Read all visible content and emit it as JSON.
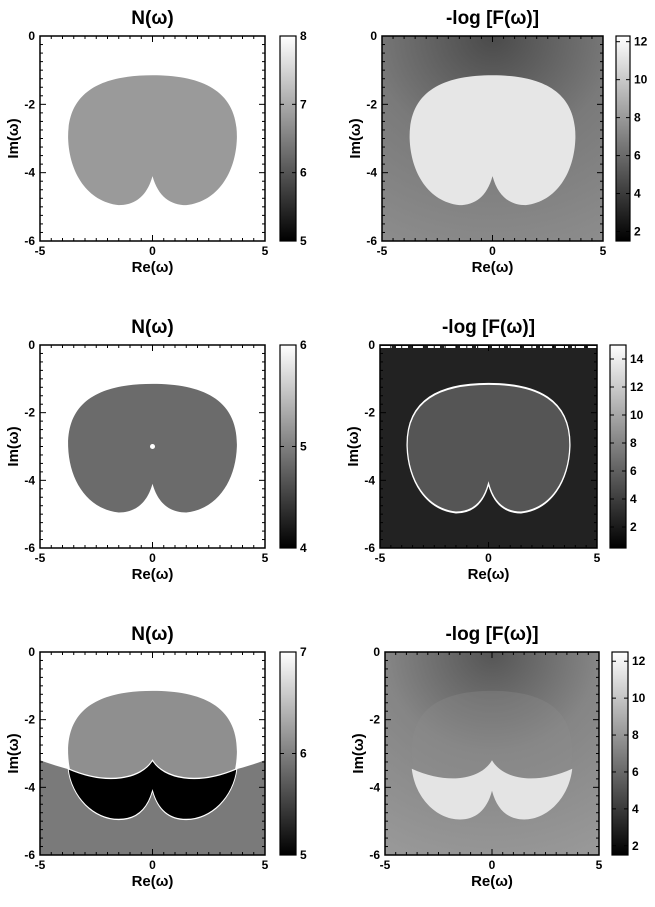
{
  "chart_data": [
    {
      "type": "heatmap",
      "title": "N(ω)",
      "xlabel": "Re(ω)",
      "ylabel": "Im(ω)",
      "xlim": [
        -5,
        5
      ],
      "ylim": [
        -6,
        0
      ],
      "xticks": [
        "-5",
        "0",
        "5"
      ],
      "yticks": [
        "0",
        "-2",
        "-4",
        "-6"
      ],
      "colorbar": {
        "range": [
          5,
          8
        ],
        "ticks": [
          "8",
          "7",
          "6",
          "5"
        ]
      },
      "region_values": {
        "inside_curve": 7,
        "outside_curve": 8
      }
    },
    {
      "type": "heatmap",
      "title": "-log [F(ω)]",
      "xlabel": "Re(ω)",
      "ylabel": "Im(ω)",
      "xlim": [
        -5,
        5
      ],
      "ylim": [
        -6,
        0
      ],
      "xticks": [
        "-5",
        "0",
        "5"
      ],
      "yticks": [
        "0",
        "-2",
        "-4",
        "-6"
      ],
      "colorbar": {
        "range": [
          1.5,
          12.3
        ],
        "ticks": [
          "12",
          "10",
          "8",
          "6",
          "4",
          "2"
        ]
      },
      "region_values": {
        "inside_curve": 11.5,
        "outside_curve": 6.5
      }
    },
    {
      "type": "heatmap",
      "title": "N(ω)",
      "xlabel": "Re(ω)",
      "ylabel": "Im(ω)",
      "xlim": [
        -5,
        5
      ],
      "ylim": [
        -6,
        0
      ],
      "xticks": [
        "-5",
        "0",
        "5"
      ],
      "yticks": [
        "0",
        "-2",
        "-4",
        "-6"
      ],
      "colorbar": {
        "range": [
          4,
          6
        ],
        "ticks": [
          "6",
          "5",
          "4"
        ]
      },
      "region_values": {
        "inside_curve": 5,
        "outside_curve": 6
      }
    },
    {
      "type": "heatmap",
      "title": "-log [F(ω)]",
      "xlabel": "Re(ω)",
      "ylabel": "Im(ω)",
      "xlim": [
        -5,
        5
      ],
      "ylim": [
        -6,
        0
      ],
      "xticks": [
        "-5",
        "0",
        "5"
      ],
      "yticks": [
        "0",
        "-2",
        "-4",
        "-6"
      ],
      "colorbar": {
        "range": [
          0.5,
          15
        ],
        "ticks": [
          "14",
          "12",
          "10",
          "8",
          "6",
          "4",
          "2"
        ]
      },
      "region_values": {
        "inside_curve": 5,
        "outside_curve": 2.5,
        "boundary": 15
      }
    },
    {
      "type": "heatmap",
      "title": "N(ω)",
      "xlabel": "Re(ω)",
      "ylabel": "Im(ω)",
      "xlim": [
        -5,
        5
      ],
      "ylim": [
        -6,
        0
      ],
      "xticks": [
        "-5",
        "0",
        "5"
      ],
      "yticks": [
        "0",
        "-2",
        "-4",
        "-6"
      ],
      "colorbar": {
        "range": [
          5,
          7
        ],
        "ticks": [
          "7",
          "6",
          "5"
        ]
      },
      "region_values": {
        "upper": 7,
        "inside_curve_upper": 6,
        "below_arc": 5.6,
        "inside_curve_lower": 5
      }
    },
    {
      "type": "heatmap",
      "title": "-log [F(ω)]",
      "xlabel": "Re(ω)",
      "ylabel": "Im(ω)",
      "xlim": [
        -5,
        5
      ],
      "ylim": [
        -6,
        0
      ],
      "xticks": [
        "-5",
        "0",
        "5"
      ],
      "yticks": [
        "0",
        "-2",
        "-4",
        "-6"
      ],
      "colorbar": {
        "range": [
          1.5,
          12.5
        ],
        "ticks": [
          "12",
          "10",
          "8",
          "6",
          "4",
          "2"
        ]
      },
      "region_values": {
        "outside": 6.5,
        "inside_curve_lower": 11
      }
    }
  ]
}
